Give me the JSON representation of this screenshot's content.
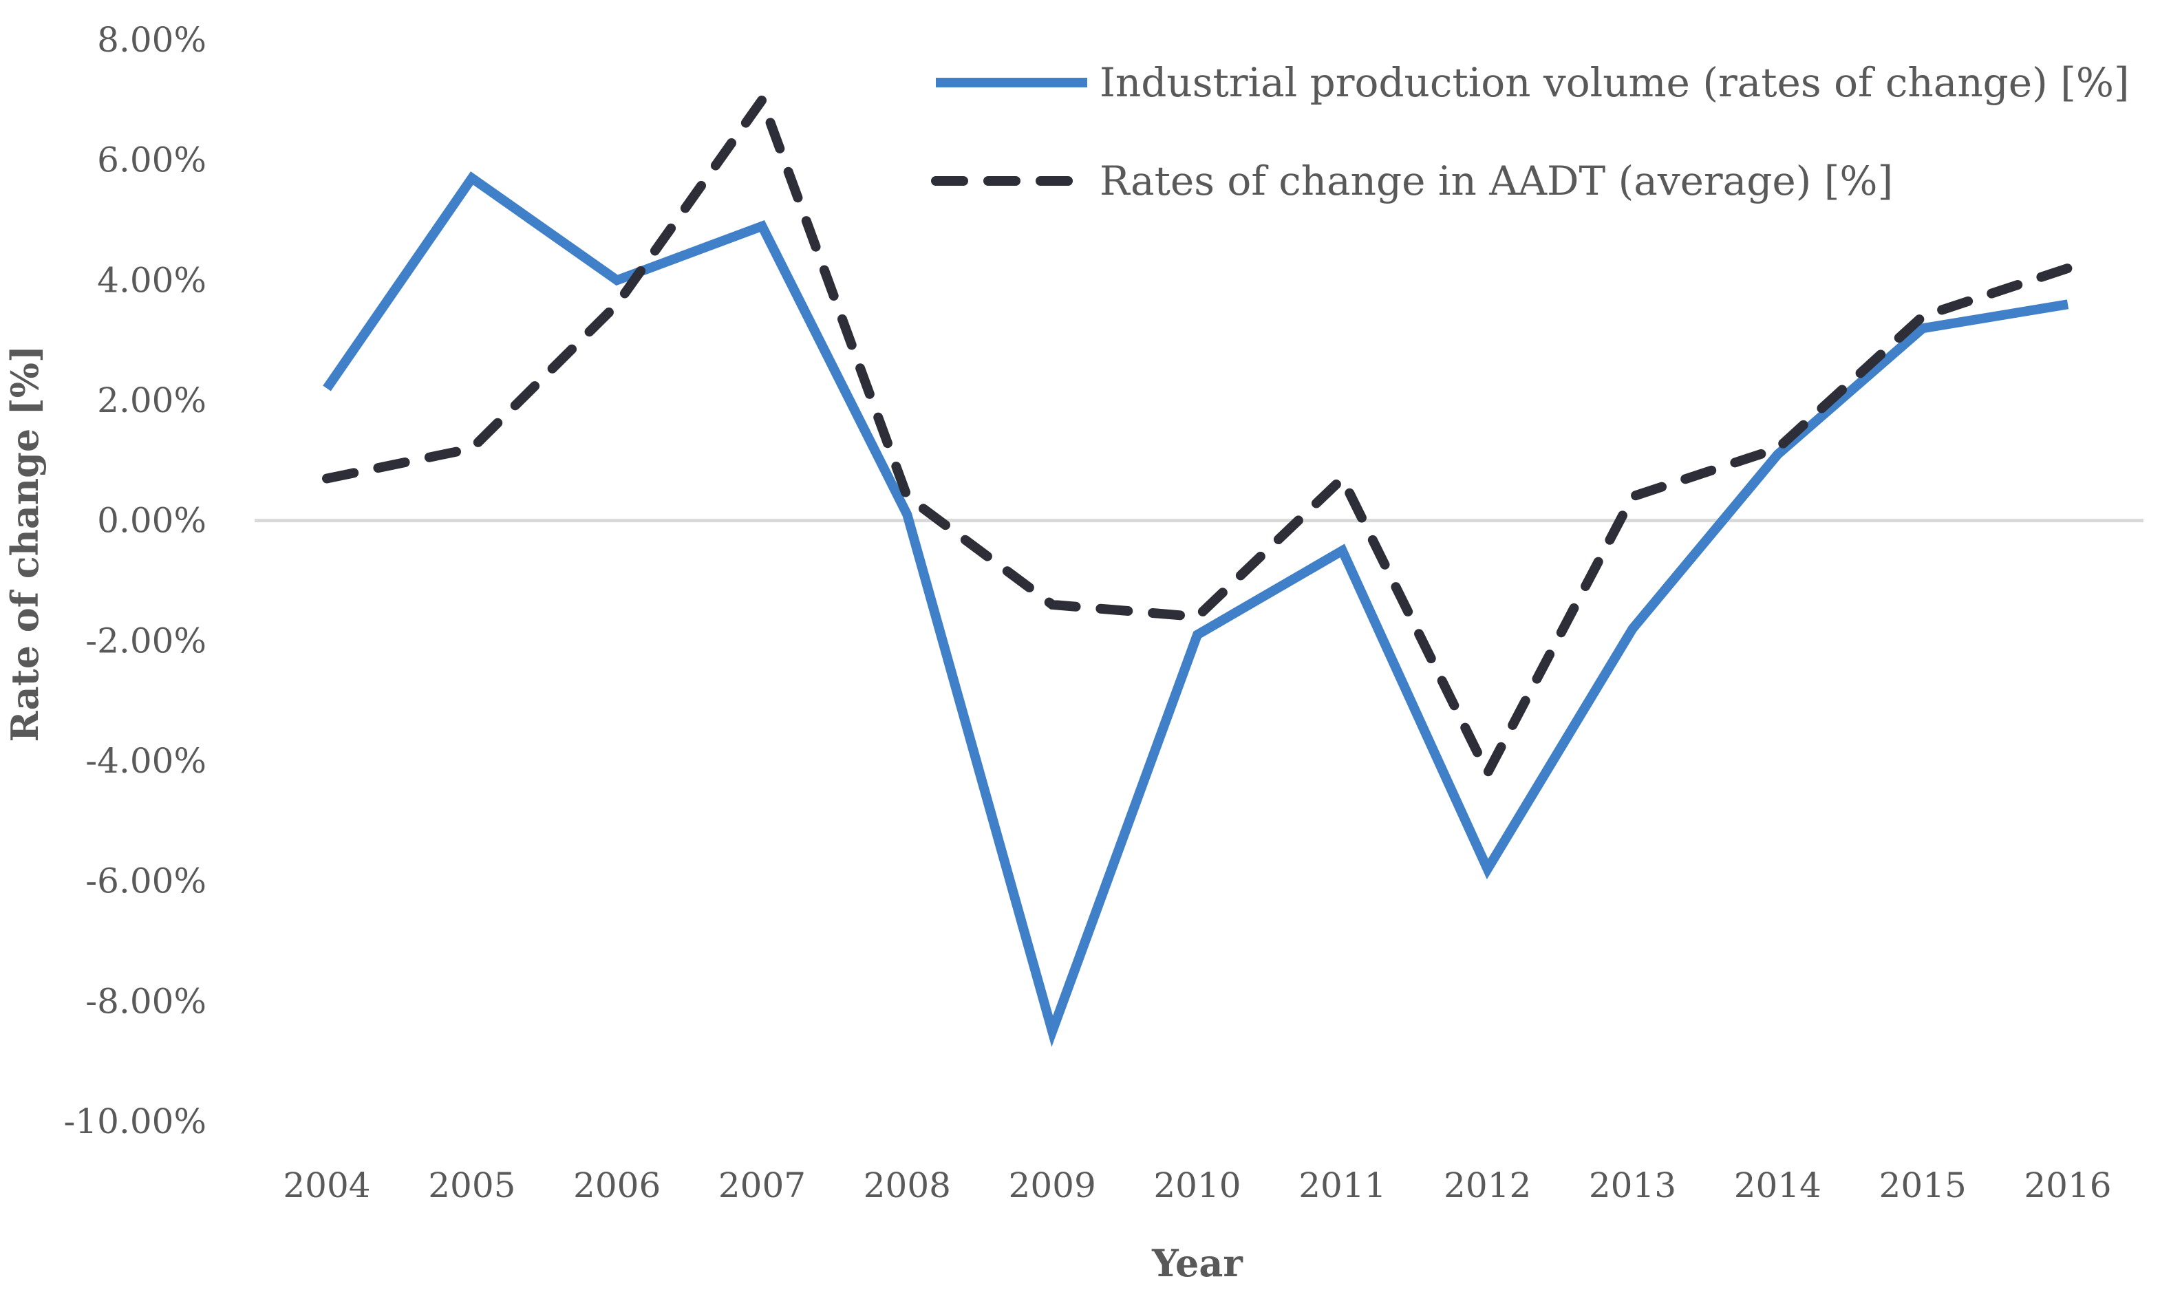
{
  "chart_data": {
    "type": "line",
    "title": "",
    "xlabel": "Year",
    "ylabel": "Rate of change [%]",
    "categories": [
      "2004",
      "2005",
      "2006",
      "2007",
      "2008",
      "2009",
      "2010",
      "2011",
      "2012",
      "2013",
      "2014",
      "2015",
      "2016"
    ],
    "ylim": [
      -10,
      8
    ],
    "yticks": [
      8,
      6,
      4,
      2,
      0,
      -2,
      -4,
      -6,
      -8,
      -10
    ],
    "ytick_labels": [
      "8.00%",
      "6.00%",
      "4.00%",
      "2.00%",
      "0.00%",
      "-2.00%",
      "-4.00%",
      "-6.00%",
      "-8.00%",
      "-10.00%"
    ],
    "grid": false,
    "zero_line": true,
    "legend_position": "top-right",
    "series": [
      {
        "name": "Industrial production volume (rates of change) [%]",
        "style": "solid",
        "color": "#3F80C8",
        "values": [
          2.2,
          5.7,
          4.0,
          4.9,
          0.1,
          -8.5,
          -1.9,
          -0.5,
          -5.8,
          -1.8,
          1.1,
          3.2,
          3.6
        ]
      },
      {
        "name": "Rates of change in AADT (average) [%]",
        "style": "dashed",
        "color": "#2E2E38",
        "values": [
          0.7,
          1.2,
          3.6,
          7.0,
          0.4,
          -1.4,
          -1.6,
          0.7,
          -4.2,
          0.4,
          1.2,
          3.4,
          4.2
        ]
      }
    ]
  }
}
